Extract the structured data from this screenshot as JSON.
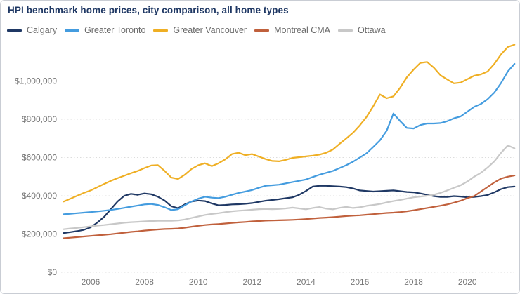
{
  "card": {
    "title": "HPI benchmark home prices, city comparison, all home types"
  },
  "chart_data": {
    "type": "line",
    "title": "HPI benchmark home prices, city comparison, all home types",
    "xlabel": "",
    "ylabel": "",
    "y_unit": "CAD dollars",
    "x_unit": "year (quarterly samples)",
    "x_start": 2005.0,
    "x_step": 0.25,
    "x_range": [
      2005.0,
      2021.75
    ],
    "ylim": [
      0,
      1200000
    ],
    "grid": "horizontal-dotted",
    "legend_position": "top-left",
    "x_ticks": [
      "2006",
      "2008",
      "2010",
      "2012",
      "2014",
      "2016",
      "2018",
      "2020"
    ],
    "x_tick_values": [
      2006,
      2008,
      2010,
      2012,
      2014,
      2016,
      2018,
      2020
    ],
    "y_ticks": [
      {
        "value": 0,
        "label": "$0"
      },
      {
        "value": 200000,
        "label": "$200,000"
      },
      {
        "value": 400000,
        "label": "$400,000"
      },
      {
        "value": 600000,
        "label": "$600,000"
      },
      {
        "value": 800000,
        "label": "$800,000"
      },
      {
        "value": 1000000,
        "label": "$1,000,000"
      }
    ],
    "series": [
      {
        "name": "Calgary",
        "color": "#1f3864",
        "values": [
          205000,
          210000,
          215000,
          222000,
          235000,
          260000,
          290000,
          330000,
          370000,
          400000,
          410000,
          405000,
          412000,
          408000,
          395000,
          375000,
          345000,
          335000,
          355000,
          370000,
          375000,
          372000,
          360000,
          350000,
          352000,
          355000,
          356000,
          358000,
          362000,
          368000,
          374000,
          378000,
          382000,
          387000,
          392000,
          405000,
          425000,
          448000,
          452000,
          452000,
          450000,
          448000,
          445000,
          438000,
          428000,
          425000,
          422000,
          424000,
          426000,
          428000,
          424000,
          420000,
          418000,
          412000,
          405000,
          398000,
          394000,
          394000,
          398000,
          396000,
          392000,
          394000,
          398000,
          404000,
          418000,
          435000,
          445000,
          448000
        ]
      },
      {
        "name": "Greater Toronto",
        "color": "#449cdf",
        "values": [
          303000,
          306000,
          309000,
          312000,
          315000,
          318000,
          322000,
          326000,
          331000,
          337000,
          343000,
          349000,
          355000,
          357000,
          352000,
          340000,
          325000,
          330000,
          350000,
          370000,
          385000,
          395000,
          390000,
          388000,
          395000,
          405000,
          415000,
          422000,
          430000,
          442000,
          452000,
          455000,
          458000,
          465000,
          472000,
          478000,
          485000,
          498000,
          510000,
          520000,
          530000,
          545000,
          560000,
          578000,
          600000,
          622000,
          655000,
          690000,
          740000,
          830000,
          790000,
          755000,
          752000,
          770000,
          778000,
          778000,
          780000,
          790000,
          805000,
          815000,
          840000,
          865000,
          880000,
          905000,
          940000,
          990000,
          1050000,
          1090000
        ]
      },
      {
        "name": "Greater Vancouver",
        "color": "#efaf24",
        "values": [
          370000,
          385000,
          400000,
          415000,
          428000,
          445000,
          462000,
          478000,
          492000,
          505000,
          518000,
          530000,
          545000,
          558000,
          560000,
          530000,
          495000,
          488000,
          510000,
          540000,
          560000,
          570000,
          555000,
          570000,
          590000,
          618000,
          625000,
          612000,
          618000,
          605000,
          592000,
          582000,
          580000,
          588000,
          598000,
          602000,
          606000,
          610000,
          615000,
          625000,
          642000,
          672000,
          700000,
          730000,
          768000,
          812000,
          868000,
          930000,
          910000,
          920000,
          965000,
          1020000,
          1060000,
          1095000,
          1100000,
          1070000,
          1030000,
          1008000,
          988000,
          992000,
          1010000,
          1028000,
          1035000,
          1050000,
          1090000,
          1140000,
          1178000,
          1190000
        ]
      },
      {
        "name": "Montreal CMA",
        "color": "#c0603c",
        "values": [
          178000,
          181000,
          184000,
          187000,
          190000,
          193000,
          196000,
          199000,
          203000,
          207000,
          211000,
          214000,
          218000,
          221000,
          224000,
          226000,
          227000,
          229000,
          233000,
          238000,
          243000,
          247000,
          250000,
          252000,
          255000,
          258000,
          261000,
          263000,
          266000,
          268000,
          270000,
          271000,
          272000,
          273000,
          274000,
          276000,
          278000,
          281000,
          284000,
          286000,
          288000,
          291000,
          294000,
          296000,
          298000,
          301000,
          304000,
          307000,
          310000,
          312000,
          315000,
          319000,
          324000,
          330000,
          336000,
          342000,
          348000,
          355000,
          364000,
          374000,
          388000,
          398000,
          422000,
          446000,
          470000,
          490000,
          500000,
          506000
        ]
      },
      {
        "name": "Ottawa",
        "color": "#c8c8c8",
        "values": [
          225000,
          229000,
          232000,
          236000,
          240000,
          244000,
          247000,
          251000,
          255000,
          259000,
          262000,
          264000,
          266000,
          268000,
          269000,
          269000,
          269000,
          271000,
          276000,
          284000,
          292000,
          300000,
          305000,
          309000,
          314000,
          319000,
          322000,
          324000,
          327000,
          330000,
          331000,
          330000,
          331000,
          334000,
          338000,
          334000,
          329000,
          336000,
          341000,
          333000,
          329000,
          337000,
          342000,
          336000,
          340000,
          347000,
          352000,
          357000,
          365000,
          372000,
          378000,
          385000,
          392000,
          396000,
          400000,
          406000,
          415000,
          428000,
          442000,
          455000,
          475000,
          500000,
          520000,
          548000,
          580000,
          625000,
          663000,
          648000
        ]
      }
    ]
  }
}
